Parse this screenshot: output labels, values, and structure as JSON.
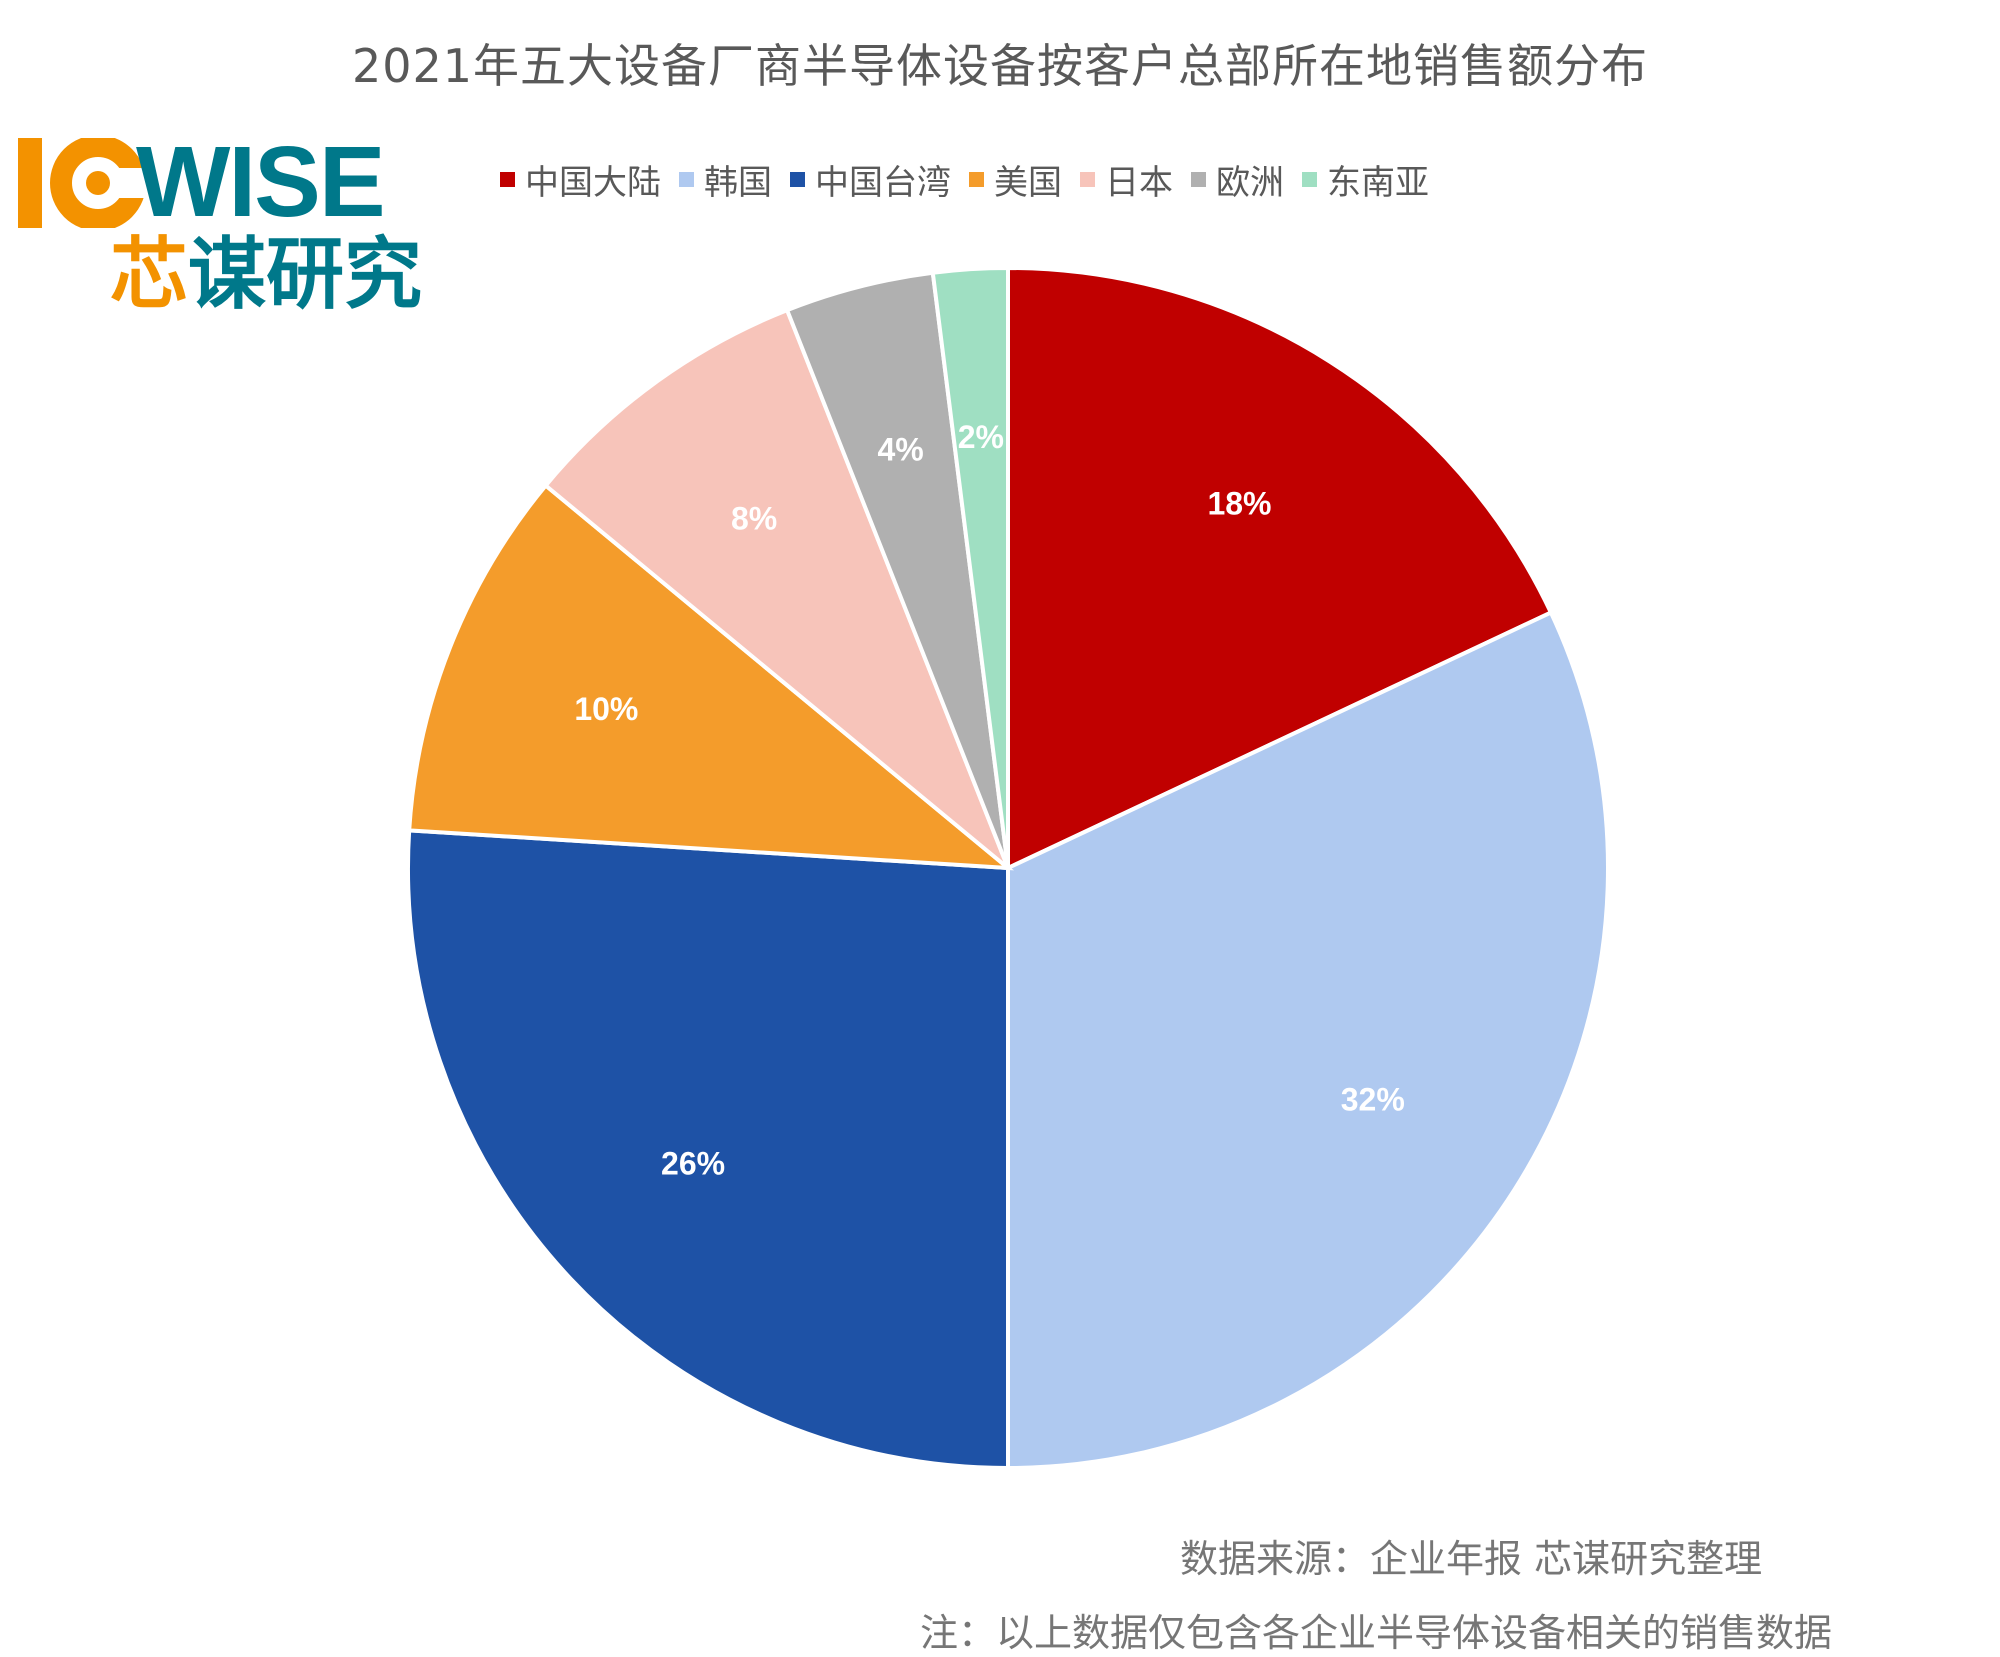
{
  "title": "2021年五大设备厂商半导体设备按客户总部所在地销售额分布",
  "logo": {
    "wise": "WISE",
    "cn_part1": "芯",
    "cn_part2": "谋研究"
  },
  "chart_data": {
    "type": "pie",
    "title": "2021年五大设备厂商半导体设备按客户总部所在地销售额分布",
    "categories": [
      "中国大陆",
      "韩国",
      "中国台湾",
      "美国",
      "日本",
      "欧洲",
      "东南亚"
    ],
    "values": [
      18,
      32,
      26,
      10,
      8,
      4,
      2
    ],
    "labels": [
      "18%",
      "32%",
      "26%",
      "10%",
      "8%",
      "4%",
      "2%"
    ],
    "colors": [
      "#c00000",
      "#afc9f0",
      "#1e52a6",
      "#f49c2b",
      "#f7c4ba",
      "#b0b0b0",
      "#9fdfc2"
    ],
    "start": "12 o'clock",
    "direction": "clockwise",
    "legend": "top"
  },
  "footer": {
    "source": "数据来源：企业年报  芯谋研究整理",
    "note": "注：以上数据仅包含各企业半导体设备相关的销售数据"
  }
}
